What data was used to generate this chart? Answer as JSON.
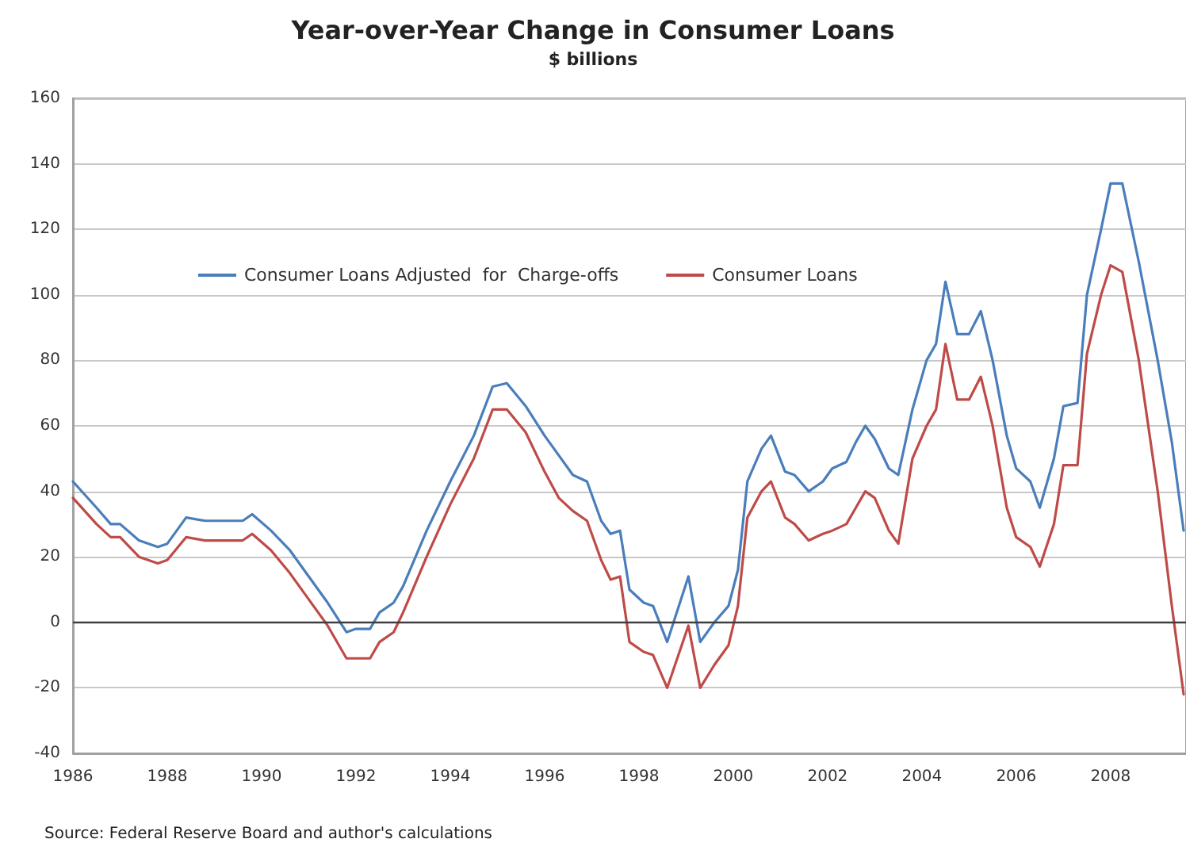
{
  "chart_data": {
    "type": "line",
    "title": "Year-over-Year Change in Consumer Loans",
    "subtitle": "$ billions",
    "annotations": [
      "Source: Federal Reserve Board and author's calculations"
    ],
    "xlim": [
      1986,
      2009.6
    ],
    "xticks": [
      1986,
      1988,
      1990,
      1992,
      1994,
      1996,
      1998,
      2000,
      2002,
      2004,
      2006,
      2008
    ],
    "ylim": [
      -40,
      160
    ],
    "yticks": [
      -40,
      -20,
      0,
      20,
      40,
      60,
      80,
      100,
      120,
      140,
      160
    ],
    "grid": "y",
    "legend": "top left",
    "marker": "none",
    "line_style": "solid",
    "ref_lines": [
      {
        "axis": "y",
        "value": 0,
        "color": "#404040"
      }
    ],
    "x": [
      1986.0,
      1986.5,
      1986.8,
      1987.0,
      1987.4,
      1987.8,
      1988.0,
      1988.4,
      1988.8,
      1989.2,
      1989.6,
      1989.8,
      1990.2,
      1990.6,
      1991.0,
      1991.4,
      1991.8,
      1992.0,
      1992.3,
      1992.5,
      1992.8,
      1993.0,
      1993.5,
      1994.0,
      1994.5,
      1994.9,
      1995.2,
      1995.6,
      1996.0,
      1996.3,
      1996.6,
      1996.9,
      1997.2,
      1997.4,
      1997.6,
      1997.8,
      1998.1,
      1998.3,
      1998.6,
      1999.05,
      1999.3,
      1999.6,
      1999.9,
      2000.1,
      2000.3,
      2000.6,
      2000.8,
      2001.1,
      2001.3,
      2001.6,
      2001.9,
      2002.1,
      2002.4,
      2002.6,
      2002.8,
      2003.0,
      2003.3,
      2003.5,
      2003.8,
      2004.1,
      2004.3,
      2004.5,
      2004.75,
      2005.0,
      2005.25,
      2005.5,
      2005.8,
      2006.0,
      2006.3,
      2006.5,
      2006.8,
      2007.0,
      2007.3,
      2007.5,
      2007.8,
      2008.0,
      2008.25,
      2008.6,
      2009.0,
      2009.3,
      2009.55
    ],
    "series": [
      {
        "name": "Consumer Loans Adjusted  for  Charge-offs",
        "color": "#4a7ebb",
        "values": [
          43,
          35,
          30,
          30,
          25,
          23,
          24,
          32,
          31,
          31,
          31,
          33,
          28,
          22,
          14,
          6,
          -3,
          -2,
          -2,
          3,
          6,
          11,
          28,
          43,
          57,
          72,
          73,
          66,
          57,
          51,
          45,
          43,
          31,
          27,
          28,
          10,
          6,
          5,
          -6,
          14,
          -6,
          0,
          5,
          16,
          43,
          53,
          57,
          46,
          45,
          40,
          43,
          47,
          49,
          55,
          60,
          56,
          47,
          45,
          65,
          80,
          85,
          104,
          88,
          88,
          95,
          80,
          57,
          47,
          43,
          35,
          50,
          66,
          67,
          100,
          120,
          134,
          134,
          110,
          80,
          55,
          28
        ]
      },
      {
        "name": "Consumer Loans",
        "color": "#be4b48",
        "values": [
          38,
          30,
          26,
          26,
          20,
          18,
          19,
          26,
          25,
          25,
          25,
          27,
          22,
          15,
          7,
          -1,
          -11,
          -11,
          -11,
          -6,
          -3,
          3,
          20,
          36,
          50,
          65,
          65,
          58,
          46,
          38,
          34,
          31,
          19,
          13,
          14,
          -6,
          -9,
          -10,
          -20,
          -1,
          -20,
          -13,
          -7,
          5,
          32,
          40,
          43,
          32,
          30,
          25,
          27,
          28,
          30,
          35,
          40,
          38,
          28,
          24,
          50,
          60,
          65,
          85,
          68,
          68,
          75,
          60,
          35,
          26,
          23,
          17,
          30,
          48,
          48,
          82,
          100,
          109,
          107,
          80,
          40,
          5,
          -22
        ]
      }
    ]
  }
}
